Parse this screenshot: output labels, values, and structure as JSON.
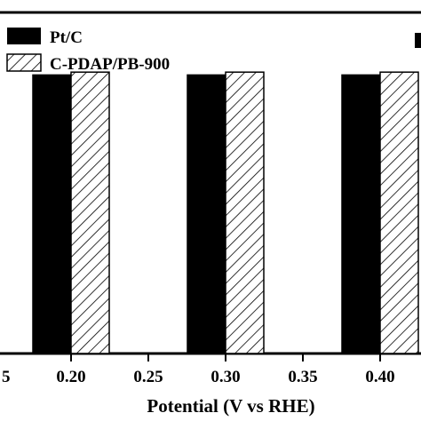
{
  "chart_data": {
    "type": "bar",
    "xlabel": "Potential (V vs RHE)",
    "ylabel": "",
    "x_ticks": [
      "5",
      "0.20",
      "0.25",
      "0.30",
      "0.35",
      "0.40"
    ],
    "categories": [
      "0.20",
      "0.30",
      "0.40"
    ],
    "series": [
      {
        "name": "Pt/C",
        "values": [
          98,
          98,
          98
        ],
        "fill": "solid",
        "color": "#000000"
      },
      {
        "name": "C-PDAP/PB-900",
        "values": [
          99,
          99,
          99
        ],
        "fill": "hatched",
        "color": "#ffffff"
      }
    ],
    "ylim": [
      0,
      120
    ],
    "legend_position": "top-left",
    "grid": false
  }
}
